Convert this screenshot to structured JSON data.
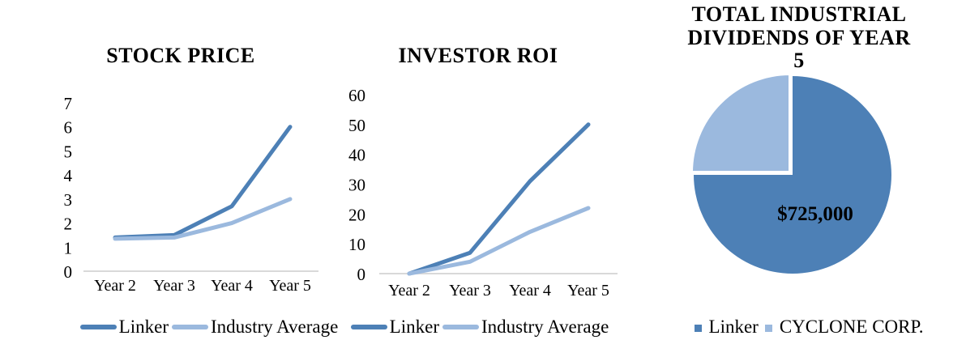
{
  "colors": {
    "primary": "#4D80B6",
    "secondary": "#9BB9DE",
    "axis_line": "#D9D9D9",
    "text": "#000000",
    "pie_border": "#FFFFFF"
  },
  "chart_data": [
    {
      "type": "line",
      "title": "STOCK PRICE",
      "xlabel": "",
      "ylabel": "",
      "categories": [
        "Year 2",
        "Year 3",
        "Year 4",
        "Year 5"
      ],
      "yticks": [
        0,
        1,
        2,
        3,
        4,
        5,
        6,
        7
      ],
      "ylim": [
        0,
        7
      ],
      "grid": false,
      "legend_position": "bottom",
      "series": [
        {
          "name": "Linker",
          "color_key": "primary",
          "values": [
            1.4,
            1.5,
            2.7,
            6.0
          ]
        },
        {
          "name": "Industry Average",
          "color_key": "secondary",
          "values": [
            1.35,
            1.4,
            2.0,
            3.0
          ]
        }
      ]
    },
    {
      "type": "line",
      "title": "INVESTOR ROI",
      "xlabel": "",
      "ylabel": "",
      "categories": [
        "Year 2",
        "Year 3",
        "Year 4",
        "Year 5"
      ],
      "yticks": [
        0,
        10,
        20,
        30,
        40,
        50,
        60
      ],
      "ylim": [
        0,
        60
      ],
      "grid": false,
      "legend_position": "bottom",
      "series": [
        {
          "name": "Linker",
          "color_key": "primary",
          "values": [
            0,
            7,
            31,
            50
          ]
        },
        {
          "name": "Industry Average",
          "color_key": "secondary",
          "values": [
            0,
            4,
            14,
            22
          ]
        }
      ]
    },
    {
      "type": "pie",
      "title": "TOTAL INDUSTRIAL DIVIDENDS OF YEAR 5",
      "legend_position": "bottom",
      "start_angle_deg": -90,
      "slices": [
        {
          "name": "Linker",
          "share": 0.75,
          "data_label": "$725,000",
          "color_key": "primary"
        },
        {
          "name": "CYCLONE CORP.",
          "share": 0.25,
          "color_key": "secondary"
        }
      ]
    }
  ]
}
